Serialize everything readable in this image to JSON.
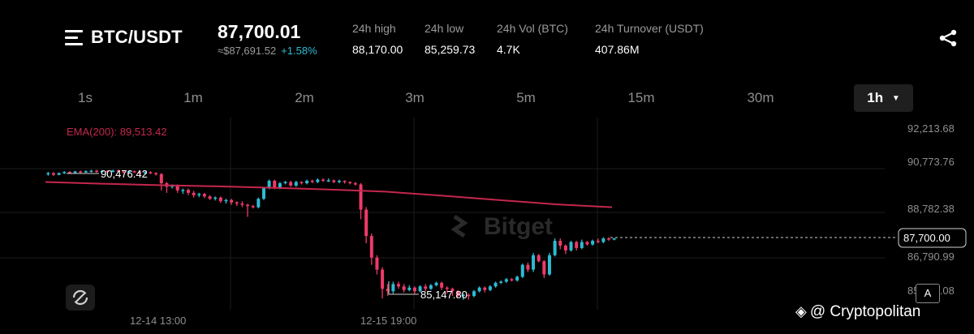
{
  "header": {
    "pair": "BTC/USDT",
    "last_price": "87,700.01",
    "fiat_price": "≈$87,691.52",
    "change": "+1.58%",
    "stats": [
      {
        "label": "24h high",
        "value": "88,170.00"
      },
      {
        "label": "24h low",
        "value": "85,259.73"
      },
      {
        "label": "24h Vol (BTC)",
        "value": "4.7K"
      },
      {
        "label": "24h Turnover (USDT)",
        "value": "407.86M"
      }
    ]
  },
  "tabs": [
    {
      "label": "1s"
    },
    {
      "label": "1m"
    },
    {
      "label": "2m"
    },
    {
      "label": "3m"
    },
    {
      "label": "5m"
    },
    {
      "label": "15m"
    },
    {
      "label": "30m"
    },
    {
      "label": "1h",
      "active": true
    }
  ],
  "chart_data": {
    "type": "candlestick",
    "indicator_label": "EMA(200): 89,513.42",
    "y_ticks": [
      "92,213.68",
      "90,773.76",
      "88,782.38",
      "86,790.99",
      "85,151.08"
    ],
    "x_ticks": [
      "12-14 13:00",
      "12-15 19:00"
    ],
    "high_label": "90,476.42",
    "low_label": "85,147.80",
    "current_price_label": "87,700.00",
    "watermark": "Bitget",
    "colors": {
      "up": "#2ebbd3",
      "down": "#ee3a6a",
      "ema": "#c4274d"
    },
    "ylim": [
      84900,
      92600
    ],
    "ema": [
      90050,
      89980,
      89920,
      89870,
      89810,
      89740,
      89650,
      89480,
      89300,
      89120,
      89000
    ],
    "candles": [
      [
        90380,
        90420,
        90310,
        90470
      ],
      [
        90420,
        90350,
        90300,
        90460
      ],
      [
        90350,
        90420,
        90330,
        90450
      ],
      [
        90420,
        90470,
        90380,
        90500
      ],
      [
        90470,
        90430,
        90390,
        90510
      ],
      [
        90430,
        90490,
        90400,
        90520
      ],
      [
        90490,
        90460,
        90420,
        90530
      ],
      [
        90460,
        90500,
        90430,
        90540
      ],
      [
        90500,
        90520,
        90450,
        90560
      ],
      [
        90520,
        90480,
        90440,
        90560
      ],
      [
        90480,
        90510,
        90460,
        90550
      ],
      [
        90510,
        90470,
        90430,
        90540
      ],
      [
        90470,
        90530,
        90450,
        90560
      ],
      [
        90530,
        90490,
        90450,
        90560
      ],
      [
        90490,
        90450,
        90400,
        90530
      ],
      [
        90450,
        90500,
        90420,
        90540
      ],
      [
        90500,
        90460,
        90420,
        90530
      ],
      [
        90460,
        90400,
        90350,
        90500
      ],
      [
        90400,
        90460,
        90370,
        90490
      ],
      [
        90460,
        90420,
        90380,
        90500
      ],
      [
        90420,
        90380,
        90320,
        90460
      ],
      [
        90380,
        90000,
        89700,
        90420
      ],
      [
        90000,
        89850,
        89600,
        90050
      ],
      [
        89850,
        89900,
        89780,
        89950
      ],
      [
        89900,
        89700,
        89600,
        89950
      ],
      [
        89700,
        89720,
        89550,
        89780
      ],
      [
        89720,
        89600,
        89500,
        89780
      ],
      [
        89600,
        89500,
        89400,
        89680
      ],
      [
        89500,
        89550,
        89420,
        89600
      ],
      [
        89550,
        89450,
        89380,
        89600
      ],
      [
        89450,
        89350,
        89300,
        89500
      ],
      [
        89350,
        89400,
        89280,
        89450
      ],
      [
        89400,
        89250,
        89180,
        89450
      ],
      [
        89250,
        89300,
        89150,
        89350
      ],
      [
        89300,
        89200,
        89100,
        89350
      ],
      [
        89200,
        89150,
        89050,
        89250
      ],
      [
        89150,
        89100,
        89000,
        89250
      ],
      [
        89100,
        89050,
        88600,
        89150
      ],
      [
        89050,
        89000,
        88950,
        89100
      ],
      [
        89000,
        89350,
        88950,
        89400
      ],
      [
        89350,
        89800,
        89300,
        89850
      ],
      [
        89800,
        90100,
        89750,
        90150
      ],
      [
        90100,
        89800,
        89750,
        90150
      ],
      [
        89800,
        90000,
        89750,
        90050
      ],
      [
        90000,
        90050,
        89950,
        90100
      ],
      [
        90050,
        89900,
        89850,
        90100
      ],
      [
        89900,
        90050,
        89850,
        90100
      ],
      [
        90050,
        90000,
        89950,
        90080
      ],
      [
        90000,
        90100,
        89950,
        90150
      ],
      [
        90100,
        90050,
        90000,
        90150
      ],
      [
        90050,
        90150,
        90000,
        90200
      ],
      [
        90150,
        90100,
        90050,
        90200
      ],
      [
        90100,
        90120,
        90050,
        90200
      ],
      [
        90120,
        90050,
        90000,
        90150
      ],
      [
        90050,
        90100,
        90000,
        90150
      ],
      [
        90100,
        90050,
        89980,
        90120
      ],
      [
        90050,
        90000,
        89950,
        90080
      ],
      [
        90000,
        89950,
        89900,
        90050
      ],
      [
        89950,
        88900,
        88500,
        90000
      ],
      [
        88900,
        87800,
        87500,
        89000
      ],
      [
        87800,
        86900,
        86600,
        87900
      ],
      [
        86900,
        86400,
        86200,
        87000
      ],
      [
        86400,
        85600,
        85200,
        86500
      ],
      [
        85600,
        85500,
        85300,
        85800
      ],
      [
        85500,
        85800,
        85400,
        85900
      ],
      [
        85800,
        85700,
        85600,
        85900
      ],
      [
        85700,
        85550,
        85450,
        85800
      ],
      [
        85550,
        85650,
        85500,
        85750
      ],
      [
        85650,
        85500,
        85400,
        85700
      ],
      [
        85500,
        85700,
        85450,
        85750
      ],
      [
        85700,
        85600,
        85500,
        85800
      ],
      [
        85600,
        85750,
        85550,
        85800
      ],
      [
        85750,
        85850,
        85700,
        85900
      ],
      [
        85850,
        85650,
        85550,
        85900
      ],
      [
        85650,
        85600,
        85400,
        85700
      ],
      [
        85600,
        85500,
        85300,
        85650
      ],
      [
        85500,
        85300,
        85250,
        85550
      ],
      [
        85300,
        85350,
        85147,
        85400
      ],
      [
        85350,
        85300,
        85150,
        85400
      ],
      [
        85300,
        85500,
        85250,
        85550
      ],
      [
        85500,
        85650,
        85450,
        85700
      ],
      [
        85650,
        85550,
        85450,
        85700
      ],
      [
        85550,
        85700,
        85500,
        85750
      ],
      [
        85700,
        85850,
        85650,
        85900
      ],
      [
        85850,
        85900,
        85800,
        85950
      ],
      [
        85900,
        86000,
        85850,
        86050
      ],
      [
        86000,
        85950,
        85900,
        86050
      ],
      [
        85950,
        86100,
        85900,
        86150
      ],
      [
        86100,
        86600,
        86050,
        86650
      ],
      [
        86600,
        86400,
        86300,
        86700
      ],
      [
        86400,
        87000,
        86300,
        87100
      ],
      [
        87000,
        86750,
        86700,
        87050
      ],
      [
        86750,
        86200,
        86050,
        86800
      ],
      [
        86200,
        87000,
        86150,
        87100
      ],
      [
        87000,
        87600,
        86950,
        87700
      ],
      [
        87600,
        87400,
        87250,
        87700
      ],
      [
        87400,
        87200,
        87050,
        87450
      ],
      [
        87200,
        87550,
        87150,
        87600
      ],
      [
        87550,
        87300,
        87200,
        87600
      ],
      [
        87300,
        87550,
        87250,
        87650
      ],
      [
        87550,
        87450,
        87400,
        87600
      ],
      [
        87450,
        87600,
        87400,
        87650
      ],
      [
        87600,
        87550,
        87500,
        87700
      ],
      [
        87550,
        87700,
        87500,
        87750
      ],
      [
        87700,
        87650,
        87600,
        87750
      ],
      [
        87650,
        87700,
        87620,
        87720
      ]
    ]
  },
  "controls": {
    "auto_label": "A"
  },
  "footer": {
    "credit": "@ Cryptopolitan"
  }
}
